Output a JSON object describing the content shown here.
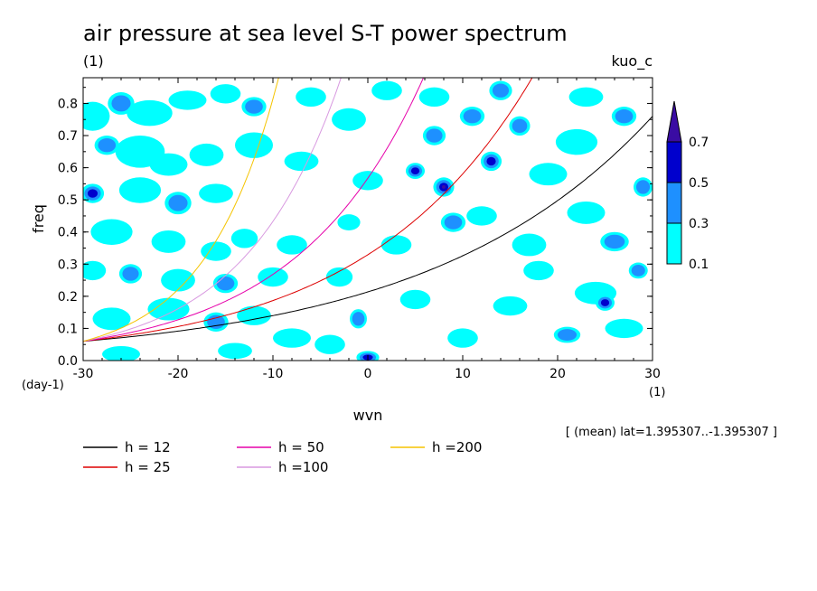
{
  "chart_data": {
    "type": "contour",
    "title": "air pressure at sea level S-T power spectrum",
    "units_label": "(1)",
    "experiment": "kuo_c",
    "xlabel": "wvn",
    "x_units": "(1)",
    "ylabel": "freq",
    "y_units": "(day-1)",
    "xlim": [
      -30,
      30
    ],
    "ylim": [
      0,
      0.88
    ],
    "x_ticks": [
      -30,
      -20,
      -10,
      0,
      10,
      20,
      30
    ],
    "x_tick_labels": [
      "-30",
      "-20",
      "-10",
      "0",
      "10",
      "20",
      "30"
    ],
    "y_ticks": [
      0,
      0.1,
      0.2,
      0.3,
      0.4,
      0.5,
      0.6,
      0.7,
      0.8
    ],
    "y_tick_labels": [
      "0.0",
      "0.1",
      "0.2",
      "0.3",
      "0.4",
      "0.5",
      "0.6",
      "0.7",
      "0.8"
    ],
    "contour_levels": [
      0.1,
      0.3,
      0.5,
      0.7
    ],
    "colorbar_labels": [
      "0.1",
      "0.3",
      "0.5",
      "0.7"
    ],
    "colorbar_colors": [
      "#00ffff",
      "#1e90ff",
      "#0000cd",
      "#3a0ca3"
    ],
    "region_note": "[ (mean) lat=1.395307..-1.395307 ]",
    "dispersion_curves": [
      {
        "h": 12,
        "label": "h = 12",
        "color": "#000000"
      },
      {
        "h": 25,
        "label": "h = 25",
        "color": "#dd0000"
      },
      {
        "h": 50,
        "label": "h = 50",
        "color": "#e600aa"
      },
      {
        "h": 100,
        "label": "h =100",
        "color": "#d899e0"
      },
      {
        "h": 200,
        "label": "h =200",
        "color": "#f5c400"
      }
    ],
    "base_frequency_at_min_wvn": 0.06,
    "blobs": [
      {
        "x": -29.0,
        "y": 0.76,
        "l": 1,
        "rx": 1.8,
        "ry": 0.045
      },
      {
        "x": -26.0,
        "y": 0.8,
        "l": 2,
        "rx": 1.4,
        "ry": 0.035
      },
      {
        "x": -23.0,
        "y": 0.77,
        "l": 1,
        "rx": 2.4,
        "ry": 0.04
      },
      {
        "x": -19.0,
        "y": 0.81,
        "l": 1,
        "rx": 2.0,
        "ry": 0.03
      },
      {
        "x": -15.0,
        "y": 0.83,
        "l": 1,
        "rx": 1.6,
        "ry": 0.03
      },
      {
        "x": -12.0,
        "y": 0.79,
        "l": 2,
        "rx": 1.3,
        "ry": 0.03
      },
      {
        "x": -27.5,
        "y": 0.67,
        "l": 2,
        "rx": 1.3,
        "ry": 0.03
      },
      {
        "x": -24.0,
        "y": 0.65,
        "l": 1,
        "rx": 2.6,
        "ry": 0.05
      },
      {
        "x": -21.0,
        "y": 0.61,
        "l": 1,
        "rx": 2.0,
        "ry": 0.035
      },
      {
        "x": -17.0,
        "y": 0.64,
        "l": 1,
        "rx": 1.8,
        "ry": 0.035
      },
      {
        "x": -12.0,
        "y": 0.67,
        "l": 1,
        "rx": 2.0,
        "ry": 0.04
      },
      {
        "x": -7.0,
        "y": 0.62,
        "l": 1,
        "rx": 1.8,
        "ry": 0.03
      },
      {
        "x": -29.0,
        "y": 0.52,
        "l": 3,
        "rx": 1.2,
        "ry": 0.03
      },
      {
        "x": -24.0,
        "y": 0.53,
        "l": 1,
        "rx": 2.2,
        "ry": 0.04
      },
      {
        "x": -20.0,
        "y": 0.49,
        "l": 2,
        "rx": 1.4,
        "ry": 0.035
      },
      {
        "x": -16.0,
        "y": 0.52,
        "l": 1,
        "rx": 1.8,
        "ry": 0.03
      },
      {
        "x": -27.0,
        "y": 0.4,
        "l": 1,
        "rx": 2.2,
        "ry": 0.04
      },
      {
        "x": -21.0,
        "y": 0.37,
        "l": 1,
        "rx": 1.8,
        "ry": 0.035
      },
      {
        "x": -16.0,
        "y": 0.34,
        "l": 1,
        "rx": 1.6,
        "ry": 0.03
      },
      {
        "x": -13.0,
        "y": 0.38,
        "l": 1,
        "rx": 1.4,
        "ry": 0.03
      },
      {
        "x": -8.0,
        "y": 0.36,
        "l": 1,
        "rx": 1.6,
        "ry": 0.03
      },
      {
        "x": -29.0,
        "y": 0.28,
        "l": 1,
        "rx": 1.4,
        "ry": 0.03
      },
      {
        "x": -25.0,
        "y": 0.27,
        "l": 2,
        "rx": 1.2,
        "ry": 0.03
      },
      {
        "x": -20.0,
        "y": 0.25,
        "l": 1,
        "rx": 1.8,
        "ry": 0.035
      },
      {
        "x": -15.0,
        "y": 0.24,
        "l": 2,
        "rx": 1.3,
        "ry": 0.03
      },
      {
        "x": -10.0,
        "y": 0.26,
        "l": 1,
        "rx": 1.6,
        "ry": 0.03
      },
      {
        "x": -27.0,
        "y": 0.13,
        "l": 1,
        "rx": 2.0,
        "ry": 0.035
      },
      {
        "x": -21.0,
        "y": 0.16,
        "l": 1,
        "rx": 2.2,
        "ry": 0.035
      },
      {
        "x": -16.0,
        "y": 0.12,
        "l": 2,
        "rx": 1.3,
        "ry": 0.03
      },
      {
        "x": -12.0,
        "y": 0.14,
        "l": 1,
        "rx": 1.8,
        "ry": 0.03
      },
      {
        "x": -8.0,
        "y": 0.07,
        "l": 1,
        "rx": 2.0,
        "ry": 0.03
      },
      {
        "x": -26.0,
        "y": 0.02,
        "l": 1,
        "rx": 2.0,
        "ry": 0.025
      },
      {
        "x": -14.0,
        "y": 0.03,
        "l": 1,
        "rx": 1.8,
        "ry": 0.025
      },
      {
        "x": -4.0,
        "y": 0.05,
        "l": 1,
        "rx": 1.6,
        "ry": 0.03
      },
      {
        "x": 0.0,
        "y": 0.01,
        "l": 3,
        "rx": 1.2,
        "ry": 0.02
      },
      {
        "x": -1.0,
        "y": 0.13,
        "l": 2,
        "rx": 0.9,
        "ry": 0.03
      },
      {
        "x": -3.0,
        "y": 0.26,
        "l": 1,
        "rx": 1.4,
        "ry": 0.03
      },
      {
        "x": -2.0,
        "y": 0.43,
        "l": 1,
        "rx": 1.2,
        "ry": 0.025
      },
      {
        "x": 0.0,
        "y": 0.56,
        "l": 1,
        "rx": 1.6,
        "ry": 0.03
      },
      {
        "x": -2.0,
        "y": 0.75,
        "l": 1,
        "rx": 1.8,
        "ry": 0.035
      },
      {
        "x": 2.0,
        "y": 0.84,
        "l": 1,
        "rx": 1.6,
        "ry": 0.03
      },
      {
        "x": 3.0,
        "y": 0.36,
        "l": 1,
        "rx": 1.6,
        "ry": 0.03
      },
      {
        "x": 5.0,
        "y": 0.59,
        "l": 3,
        "rx": 1.0,
        "ry": 0.025
      },
      {
        "x": 7.0,
        "y": 0.7,
        "l": 2,
        "rx": 1.2,
        "ry": 0.03
      },
      {
        "x": 8.0,
        "y": 0.54,
        "l": 4,
        "rx": 1.1,
        "ry": 0.03
      },
      {
        "x": 9.0,
        "y": 0.43,
        "l": 2,
        "rx": 1.3,
        "ry": 0.03
      },
      {
        "x": 11.0,
        "y": 0.76,
        "l": 2,
        "rx": 1.3,
        "ry": 0.03
      },
      {
        "x": 13.0,
        "y": 0.62,
        "l": 3,
        "rx": 1.1,
        "ry": 0.03
      },
      {
        "x": 14.0,
        "y": 0.84,
        "l": 2,
        "rx": 1.2,
        "ry": 0.03
      },
      {
        "x": 16.0,
        "y": 0.73,
        "l": 2,
        "rx": 1.1,
        "ry": 0.03
      },
      {
        "x": 12.0,
        "y": 0.45,
        "l": 1,
        "rx": 1.6,
        "ry": 0.03
      },
      {
        "x": 17.0,
        "y": 0.36,
        "l": 1,
        "rx": 1.8,
        "ry": 0.035
      },
      {
        "x": 19.0,
        "y": 0.58,
        "l": 1,
        "rx": 2.0,
        "ry": 0.035
      },
      {
        "x": 22.0,
        "y": 0.68,
        "l": 1,
        "rx": 2.2,
        "ry": 0.04
      },
      {
        "x": 23.0,
        "y": 0.46,
        "l": 1,
        "rx": 2.0,
        "ry": 0.035
      },
      {
        "x": 26.0,
        "y": 0.37,
        "l": 2,
        "rx": 1.5,
        "ry": 0.03
      },
      {
        "x": 27.0,
        "y": 0.76,
        "l": 2,
        "rx": 1.3,
        "ry": 0.03
      },
      {
        "x": 29.0,
        "y": 0.54,
        "l": 2,
        "rx": 1.0,
        "ry": 0.03
      },
      {
        "x": 24.0,
        "y": 0.21,
        "l": 1,
        "rx": 2.2,
        "ry": 0.035
      },
      {
        "x": 25.0,
        "y": 0.18,
        "l": 3,
        "rx": 1.0,
        "ry": 0.025
      },
      {
        "x": 21.0,
        "y": 0.08,
        "l": 2,
        "rx": 1.4,
        "ry": 0.025
      },
      {
        "x": 15.0,
        "y": 0.17,
        "l": 1,
        "rx": 1.8,
        "ry": 0.03
      },
      {
        "x": 10.0,
        "y": 0.07,
        "l": 1,
        "rx": 1.6,
        "ry": 0.03
      },
      {
        "x": 5.0,
        "y": 0.19,
        "l": 1,
        "rx": 1.6,
        "ry": 0.03
      },
      {
        "x": 27.0,
        "y": 0.1,
        "l": 1,
        "rx": 2.0,
        "ry": 0.03
      },
      {
        "x": 18.0,
        "y": 0.28,
        "l": 1,
        "rx": 1.6,
        "ry": 0.03
      },
      {
        "x": 28.5,
        "y": 0.28,
        "l": 2,
        "rx": 1.0,
        "ry": 0.025
      },
      {
        "x": 7.0,
        "y": 0.82,
        "l": 1,
        "rx": 1.6,
        "ry": 0.03
      },
      {
        "x": 23.0,
        "y": 0.82,
        "l": 1,
        "rx": 1.8,
        "ry": 0.03
      },
      {
        "x": -6.0,
        "y": 0.82,
        "l": 1,
        "rx": 1.6,
        "ry": 0.03
      }
    ]
  }
}
